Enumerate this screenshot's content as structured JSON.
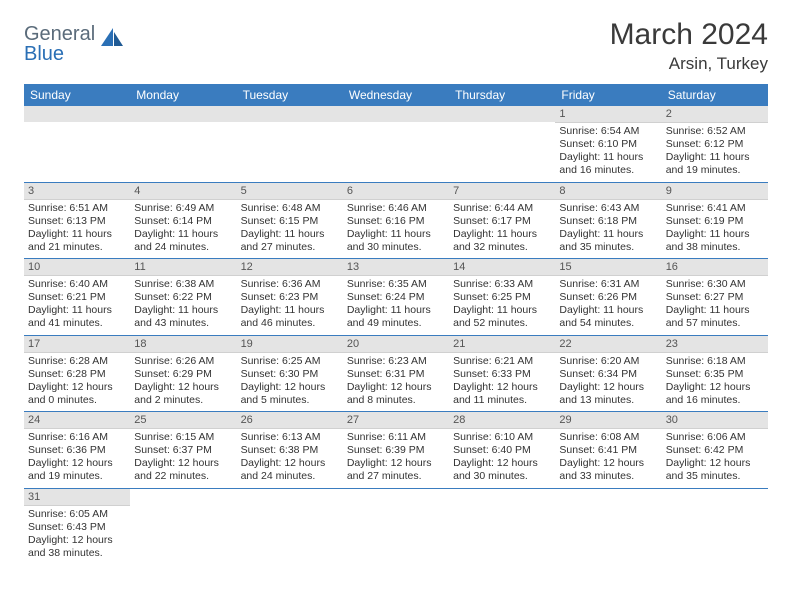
{
  "brand": {
    "part1": "General",
    "part2": "Blue"
  },
  "title": "March 2024",
  "location": "Arsin, Turkey",
  "colors": {
    "header_bg": "#3a7cbf",
    "header_fg": "#ffffff",
    "daynum_bg": "#e4e4e4",
    "cell_border": "#3a7cbf",
    "text": "#333333",
    "brand_gray": "#5a6b7a",
    "brand_blue": "#2a6fb5"
  },
  "weekdays": [
    "Sunday",
    "Monday",
    "Tuesday",
    "Wednesday",
    "Thursday",
    "Friday",
    "Saturday"
  ],
  "weeks": [
    [
      null,
      null,
      null,
      null,
      null,
      {
        "n": "1",
        "sr": "Sunrise: 6:54 AM",
        "ss": "Sunset: 6:10 PM",
        "d1": "Daylight: 11 hours",
        "d2": "and 16 minutes."
      },
      {
        "n": "2",
        "sr": "Sunrise: 6:52 AM",
        "ss": "Sunset: 6:12 PM",
        "d1": "Daylight: 11 hours",
        "d2": "and 19 minutes."
      }
    ],
    [
      {
        "n": "3",
        "sr": "Sunrise: 6:51 AM",
        "ss": "Sunset: 6:13 PM",
        "d1": "Daylight: 11 hours",
        "d2": "and 21 minutes."
      },
      {
        "n": "4",
        "sr": "Sunrise: 6:49 AM",
        "ss": "Sunset: 6:14 PM",
        "d1": "Daylight: 11 hours",
        "d2": "and 24 minutes."
      },
      {
        "n": "5",
        "sr": "Sunrise: 6:48 AM",
        "ss": "Sunset: 6:15 PM",
        "d1": "Daylight: 11 hours",
        "d2": "and 27 minutes."
      },
      {
        "n": "6",
        "sr": "Sunrise: 6:46 AM",
        "ss": "Sunset: 6:16 PM",
        "d1": "Daylight: 11 hours",
        "d2": "and 30 minutes."
      },
      {
        "n": "7",
        "sr": "Sunrise: 6:44 AM",
        "ss": "Sunset: 6:17 PM",
        "d1": "Daylight: 11 hours",
        "d2": "and 32 minutes."
      },
      {
        "n": "8",
        "sr": "Sunrise: 6:43 AM",
        "ss": "Sunset: 6:18 PM",
        "d1": "Daylight: 11 hours",
        "d2": "and 35 minutes."
      },
      {
        "n": "9",
        "sr": "Sunrise: 6:41 AM",
        "ss": "Sunset: 6:19 PM",
        "d1": "Daylight: 11 hours",
        "d2": "and 38 minutes."
      }
    ],
    [
      {
        "n": "10",
        "sr": "Sunrise: 6:40 AM",
        "ss": "Sunset: 6:21 PM",
        "d1": "Daylight: 11 hours",
        "d2": "and 41 minutes."
      },
      {
        "n": "11",
        "sr": "Sunrise: 6:38 AM",
        "ss": "Sunset: 6:22 PM",
        "d1": "Daylight: 11 hours",
        "d2": "and 43 minutes."
      },
      {
        "n": "12",
        "sr": "Sunrise: 6:36 AM",
        "ss": "Sunset: 6:23 PM",
        "d1": "Daylight: 11 hours",
        "d2": "and 46 minutes."
      },
      {
        "n": "13",
        "sr": "Sunrise: 6:35 AM",
        "ss": "Sunset: 6:24 PM",
        "d1": "Daylight: 11 hours",
        "d2": "and 49 minutes."
      },
      {
        "n": "14",
        "sr": "Sunrise: 6:33 AM",
        "ss": "Sunset: 6:25 PM",
        "d1": "Daylight: 11 hours",
        "d2": "and 52 minutes."
      },
      {
        "n": "15",
        "sr": "Sunrise: 6:31 AM",
        "ss": "Sunset: 6:26 PM",
        "d1": "Daylight: 11 hours",
        "d2": "and 54 minutes."
      },
      {
        "n": "16",
        "sr": "Sunrise: 6:30 AM",
        "ss": "Sunset: 6:27 PM",
        "d1": "Daylight: 11 hours",
        "d2": "and 57 minutes."
      }
    ],
    [
      {
        "n": "17",
        "sr": "Sunrise: 6:28 AM",
        "ss": "Sunset: 6:28 PM",
        "d1": "Daylight: 12 hours",
        "d2": "and 0 minutes."
      },
      {
        "n": "18",
        "sr": "Sunrise: 6:26 AM",
        "ss": "Sunset: 6:29 PM",
        "d1": "Daylight: 12 hours",
        "d2": "and 2 minutes."
      },
      {
        "n": "19",
        "sr": "Sunrise: 6:25 AM",
        "ss": "Sunset: 6:30 PM",
        "d1": "Daylight: 12 hours",
        "d2": "and 5 minutes."
      },
      {
        "n": "20",
        "sr": "Sunrise: 6:23 AM",
        "ss": "Sunset: 6:31 PM",
        "d1": "Daylight: 12 hours",
        "d2": "and 8 minutes."
      },
      {
        "n": "21",
        "sr": "Sunrise: 6:21 AM",
        "ss": "Sunset: 6:33 PM",
        "d1": "Daylight: 12 hours",
        "d2": "and 11 minutes."
      },
      {
        "n": "22",
        "sr": "Sunrise: 6:20 AM",
        "ss": "Sunset: 6:34 PM",
        "d1": "Daylight: 12 hours",
        "d2": "and 13 minutes."
      },
      {
        "n": "23",
        "sr": "Sunrise: 6:18 AM",
        "ss": "Sunset: 6:35 PM",
        "d1": "Daylight: 12 hours",
        "d2": "and 16 minutes."
      }
    ],
    [
      {
        "n": "24",
        "sr": "Sunrise: 6:16 AM",
        "ss": "Sunset: 6:36 PM",
        "d1": "Daylight: 12 hours",
        "d2": "and 19 minutes."
      },
      {
        "n": "25",
        "sr": "Sunrise: 6:15 AM",
        "ss": "Sunset: 6:37 PM",
        "d1": "Daylight: 12 hours",
        "d2": "and 22 minutes."
      },
      {
        "n": "26",
        "sr": "Sunrise: 6:13 AM",
        "ss": "Sunset: 6:38 PM",
        "d1": "Daylight: 12 hours",
        "d2": "and 24 minutes."
      },
      {
        "n": "27",
        "sr": "Sunrise: 6:11 AM",
        "ss": "Sunset: 6:39 PM",
        "d1": "Daylight: 12 hours",
        "d2": "and 27 minutes."
      },
      {
        "n": "28",
        "sr": "Sunrise: 6:10 AM",
        "ss": "Sunset: 6:40 PM",
        "d1": "Daylight: 12 hours",
        "d2": "and 30 minutes."
      },
      {
        "n": "29",
        "sr": "Sunrise: 6:08 AM",
        "ss": "Sunset: 6:41 PM",
        "d1": "Daylight: 12 hours",
        "d2": "and 33 minutes."
      },
      {
        "n": "30",
        "sr": "Sunrise: 6:06 AM",
        "ss": "Sunset: 6:42 PM",
        "d1": "Daylight: 12 hours",
        "d2": "and 35 minutes."
      }
    ],
    [
      {
        "n": "31",
        "sr": "Sunrise: 6:05 AM",
        "ss": "Sunset: 6:43 PM",
        "d1": "Daylight: 12 hours",
        "d2": "and 38 minutes."
      },
      null,
      null,
      null,
      null,
      null,
      null
    ]
  ]
}
